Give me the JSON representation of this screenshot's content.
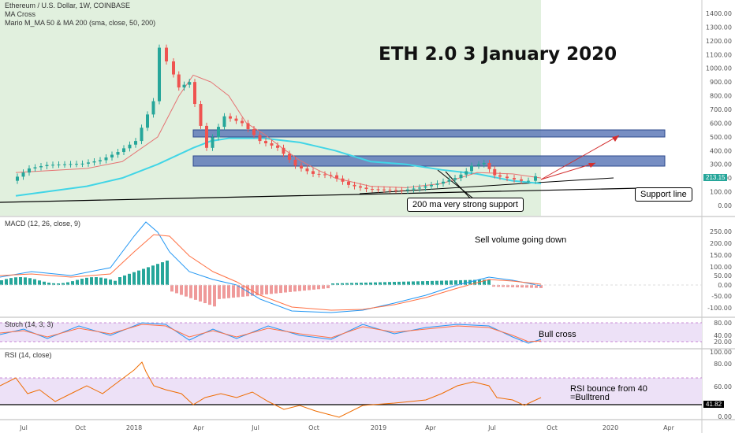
{
  "legend": {
    "symbol": "Ethereum / U.S. Dollar, 1W, COINBASE",
    "ma_cross": "MA Cross",
    "mario": "Mario M_MA 50 & MA 200 (sma, close, 50, 200)"
  },
  "chart_data": [
    {
      "type": "candlestick",
      "title": "ETH 2.0 3 January 2020",
      "x_ticks": [
        "Jul",
        "Oct",
        "2018",
        "Apr",
        "Jul",
        "Oct",
        "2019",
        "Apr",
        "Jul",
        "Oct",
        "2020",
        "Apr"
      ],
      "y_ticks": [
        0,
        100,
        200,
        300,
        400,
        500,
        600,
        700,
        800,
        900,
        1000,
        1100,
        1200,
        1300,
        1400
      ],
      "ylim": [
        -50,
        1480
      ],
      "last_price": "213.15",
      "close_series": [
        [
          0,
          180
        ],
        [
          0.25,
          270
        ],
        [
          0.5,
          295
        ],
        [
          0.75,
          300
        ],
        [
          1,
          305
        ],
        [
          1.25,
          330
        ],
        [
          1.5,
          390
        ],
        [
          1.75,
          470
        ],
        [
          2,
          760
        ],
        [
          2.1,
          1150
        ],
        [
          2.2,
          1050
        ],
        [
          2.35,
          860
        ],
        [
          2.5,
          900
        ],
        [
          2.75,
          420
        ],
        [
          3,
          650
        ],
        [
          3.25,
          600
        ],
        [
          3.5,
          470
        ],
        [
          3.75,
          420
        ],
        [
          4,
          290
        ],
        [
          4.25,
          230
        ],
        [
          4.5,
          220
        ],
        [
          4.75,
          150
        ],
        [
          5,
          120
        ],
        [
          5.25,
          115
        ],
        [
          5.5,
          110
        ],
        [
          5.75,
          130
        ],
        [
          6,
          160
        ],
        [
          6.25,
          200
        ],
        [
          6.4,
          250
        ],
        [
          6.5,
          290
        ],
        [
          6.65,
          310
        ],
        [
          6.8,
          220
        ],
        [
          7,
          200
        ],
        [
          7.2,
          180
        ],
        [
          7.3,
          180
        ],
        [
          7.4,
          213
        ]
      ],
      "ma50_series": [
        [
          0,
          240
        ],
        [
          1,
          270
        ],
        [
          1.5,
          320
        ],
        [
          2,
          500
        ],
        [
          2.3,
          800
        ],
        [
          2.5,
          950
        ],
        [
          2.75,
          900
        ],
        [
          3,
          800
        ],
        [
          3.25,
          600
        ],
        [
          3.5,
          520
        ],
        [
          3.75,
          420
        ],
        [
          4,
          330
        ],
        [
          4.25,
          260
        ],
        [
          4.5,
          200
        ],
        [
          5,
          140
        ],
        [
          5.5,
          130
        ],
        [
          6,
          160
        ],
        [
          6.5,
          240
        ],
        [
          7,
          230
        ],
        [
          7.4,
          200
        ]
      ],
      "ma200_series": [
        [
          0,
          70
        ],
        [
          1,
          140
        ],
        [
          1.5,
          200
        ],
        [
          2,
          300
        ],
        [
          2.5,
          420
        ],
        [
          2.75,
          470
        ],
        [
          3,
          490
        ],
        [
          3.5,
          490
        ],
        [
          4,
          460
        ],
        [
          4.25,
          430
        ],
        [
          4.5,
          400
        ],
        [
          5,
          320
        ],
        [
          5.5,
          300
        ],
        [
          6,
          260
        ],
        [
          6.5,
          230
        ],
        [
          7,
          180
        ],
        [
          7.4,
          160
        ]
      ],
      "zones": [
        {
          "from": 510,
          "to": 550
        },
        {
          "from": 270,
          "to": 340
        }
      ],
      "annotations": {
        "ma_support": "200 ma very strong support",
        "support_line": "Support line"
      }
    },
    {
      "type": "macd",
      "label": "MACD (12, 26, close, 9)",
      "y_ticks": [
        "250.00",
        "200.00",
        "150.00",
        "100.00",
        "50.00",
        "0.00",
        "-50.00",
        "-100.00"
      ],
      "annotation": "Sell volume going down"
    },
    {
      "type": "stoch",
      "label": "Stoch (14, 3, 3)",
      "y_ticks": [
        "80.00",
        "40.00",
        "20.00"
      ],
      "annotation": "Bull cross"
    },
    {
      "type": "rsi",
      "label": "RSI (14, close)",
      "y_ticks": [
        "100.00",
        "80.00",
        "60.00",
        "41.82",
        "0.00"
      ],
      "annotation": "RSI bounce from 40\n=Bulltrend",
      "last_value": "41.82"
    }
  ]
}
